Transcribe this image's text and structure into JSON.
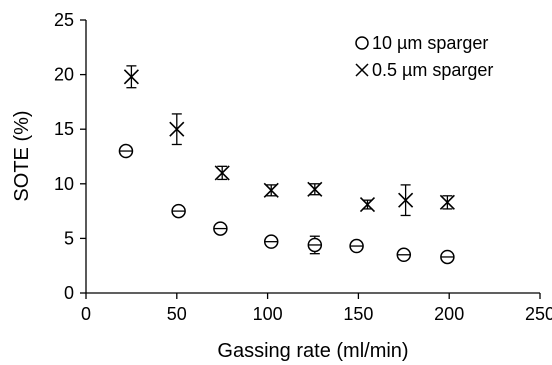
{
  "chart_data": {
    "type": "scatter",
    "xlabel": "Gassing rate (ml/min)",
    "ylabel": "SOTE (%)",
    "xlim": [
      0,
      250
    ],
    "ylim": [
      0,
      25
    ],
    "x_ticks": [
      "0",
      "50",
      "100",
      "150",
      "200",
      "250"
    ],
    "y_ticks": [
      "0",
      "5",
      "10",
      "15",
      "20",
      "25"
    ],
    "grid": false,
    "legend_position": "top-right",
    "series": [
      {
        "name": "10 µm sparger",
        "marker": "circle",
        "points": [
          {
            "x": 22,
            "y": 13.0,
            "err": 0.4
          },
          {
            "x": 51,
            "y": 7.5,
            "err": 0.4
          },
          {
            "x": 74,
            "y": 5.9,
            "err": 0.3
          },
          {
            "x": 102,
            "y": 4.7,
            "err": 0.3
          },
          {
            "x": 126,
            "y": 4.4,
            "err": 0.8
          },
          {
            "x": 149,
            "y": 4.3,
            "err": 0.4
          },
          {
            "x": 175,
            "y": 3.5,
            "err": 0.4
          },
          {
            "x": 199,
            "y": 3.3,
            "err": 0.4
          }
        ]
      },
      {
        "name": "0.5 µm sparger",
        "marker": "cross",
        "points": [
          {
            "x": 25,
            "y": 19.8,
            "err": 1.0
          },
          {
            "x": 50,
            "y": 15.0,
            "err": 1.4
          },
          {
            "x": 75,
            "y": 11.0,
            "err": 0.6
          },
          {
            "x": 102,
            "y": 9.4,
            "err": 0.5
          },
          {
            "x": 126,
            "y": 9.5,
            "err": 0.5
          },
          {
            "x": 155,
            "y": 8.1,
            "err": 0.4
          },
          {
            "x": 176,
            "y": 8.5,
            "err": 1.4
          },
          {
            "x": 199,
            "y": 8.3,
            "err": 0.6
          }
        ]
      }
    ]
  }
}
